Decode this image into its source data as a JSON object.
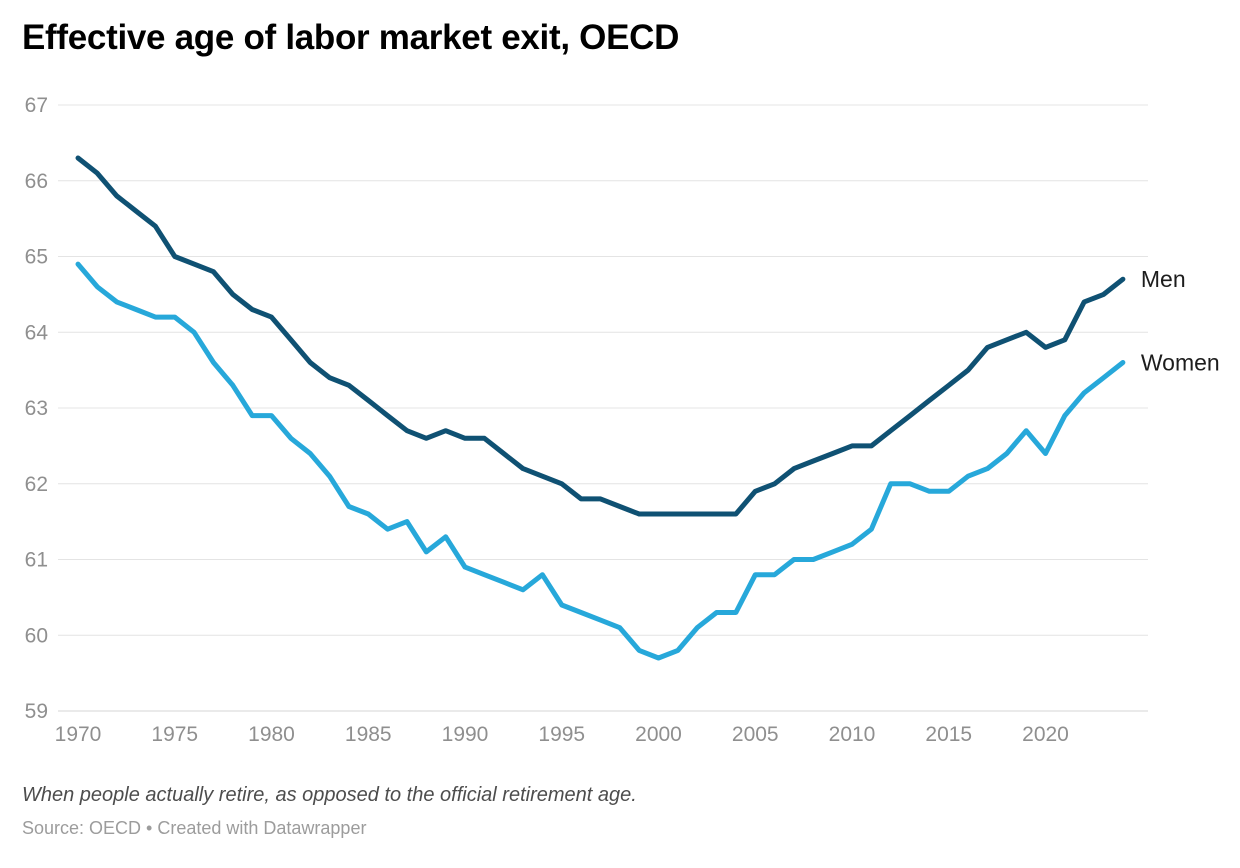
{
  "header": {
    "title": "Effective age of labor market exit, OECD"
  },
  "footer": {
    "notes": "When people actually retire, as opposed to the official retirement age.",
    "source": "Source: OECD • Created with Datawrapper"
  },
  "colors": {
    "men_line": "#0f5173",
    "women_line": "#27a8da",
    "grid": "#e4e4e4",
    "tick_label": "#8f8f8f",
    "series_label": "#1d1d1d"
  },
  "chart_data": {
    "type": "line",
    "title": "Effective age of labor market exit, OECD",
    "xlabel": "",
    "ylabel": "",
    "ylim": [
      59,
      67
    ],
    "yticks": [
      59,
      60,
      61,
      62,
      63,
      64,
      65,
      66,
      67
    ],
    "xticks": [
      1970,
      1975,
      1980,
      1985,
      1990,
      1995,
      2000,
      2005,
      2010,
      2015,
      2020
    ],
    "grid": "horizontal",
    "legend_position": "direct-label-right-of-line-end",
    "x": [
      1970,
      1971,
      1972,
      1973,
      1974,
      1975,
      1976,
      1977,
      1978,
      1979,
      1980,
      1981,
      1982,
      1983,
      1984,
      1985,
      1986,
      1987,
      1988,
      1989,
      1990,
      1991,
      1992,
      1993,
      1994,
      1995,
      1996,
      1997,
      1998,
      1999,
      2000,
      2001,
      2002,
      2003,
      2004,
      2005,
      2006,
      2007,
      2008,
      2009,
      2010,
      2011,
      2012,
      2013,
      2014,
      2015,
      2016,
      2017,
      2018,
      2019,
      2020,
      2021,
      2022,
      2023,
      2024
    ],
    "series": [
      {
        "name": "Men",
        "color": "#0f5173",
        "values": [
          66.3,
          66.1,
          65.8,
          65.6,
          65.4,
          65.0,
          64.9,
          64.8,
          64.5,
          64.3,
          64.2,
          63.9,
          63.6,
          63.4,
          63.3,
          63.1,
          62.9,
          62.7,
          62.6,
          62.7,
          62.6,
          62.6,
          62.4,
          62.2,
          62.1,
          62.0,
          61.8,
          61.8,
          61.7,
          61.6,
          61.6,
          61.6,
          61.6,
          61.6,
          61.6,
          61.9,
          62.0,
          62.2,
          62.3,
          62.4,
          62.5,
          62.5,
          62.7,
          62.9,
          63.1,
          63.3,
          63.5,
          63.8,
          63.9,
          64.0,
          63.8,
          63.9,
          64.4,
          64.5,
          64.7
        ]
      },
      {
        "name": "Women",
        "color": "#27a8da",
        "values": [
          64.9,
          64.6,
          64.4,
          64.3,
          64.2,
          64.2,
          64.0,
          63.6,
          63.3,
          62.9,
          62.9,
          62.6,
          62.4,
          62.1,
          61.7,
          61.6,
          61.4,
          61.5,
          61.1,
          61.3,
          60.9,
          60.8,
          60.7,
          60.6,
          60.8,
          60.4,
          60.3,
          60.2,
          60.1,
          59.8,
          59.7,
          59.8,
          60.1,
          60.3,
          60.3,
          60.8,
          60.8,
          61.0,
          61.0,
          61.1,
          61.2,
          61.4,
          62.0,
          62.0,
          61.9,
          61.9,
          62.1,
          62.2,
          62.4,
          62.7,
          62.4,
          62.9,
          63.2,
          63.4,
          63.6
        ]
      }
    ]
  }
}
